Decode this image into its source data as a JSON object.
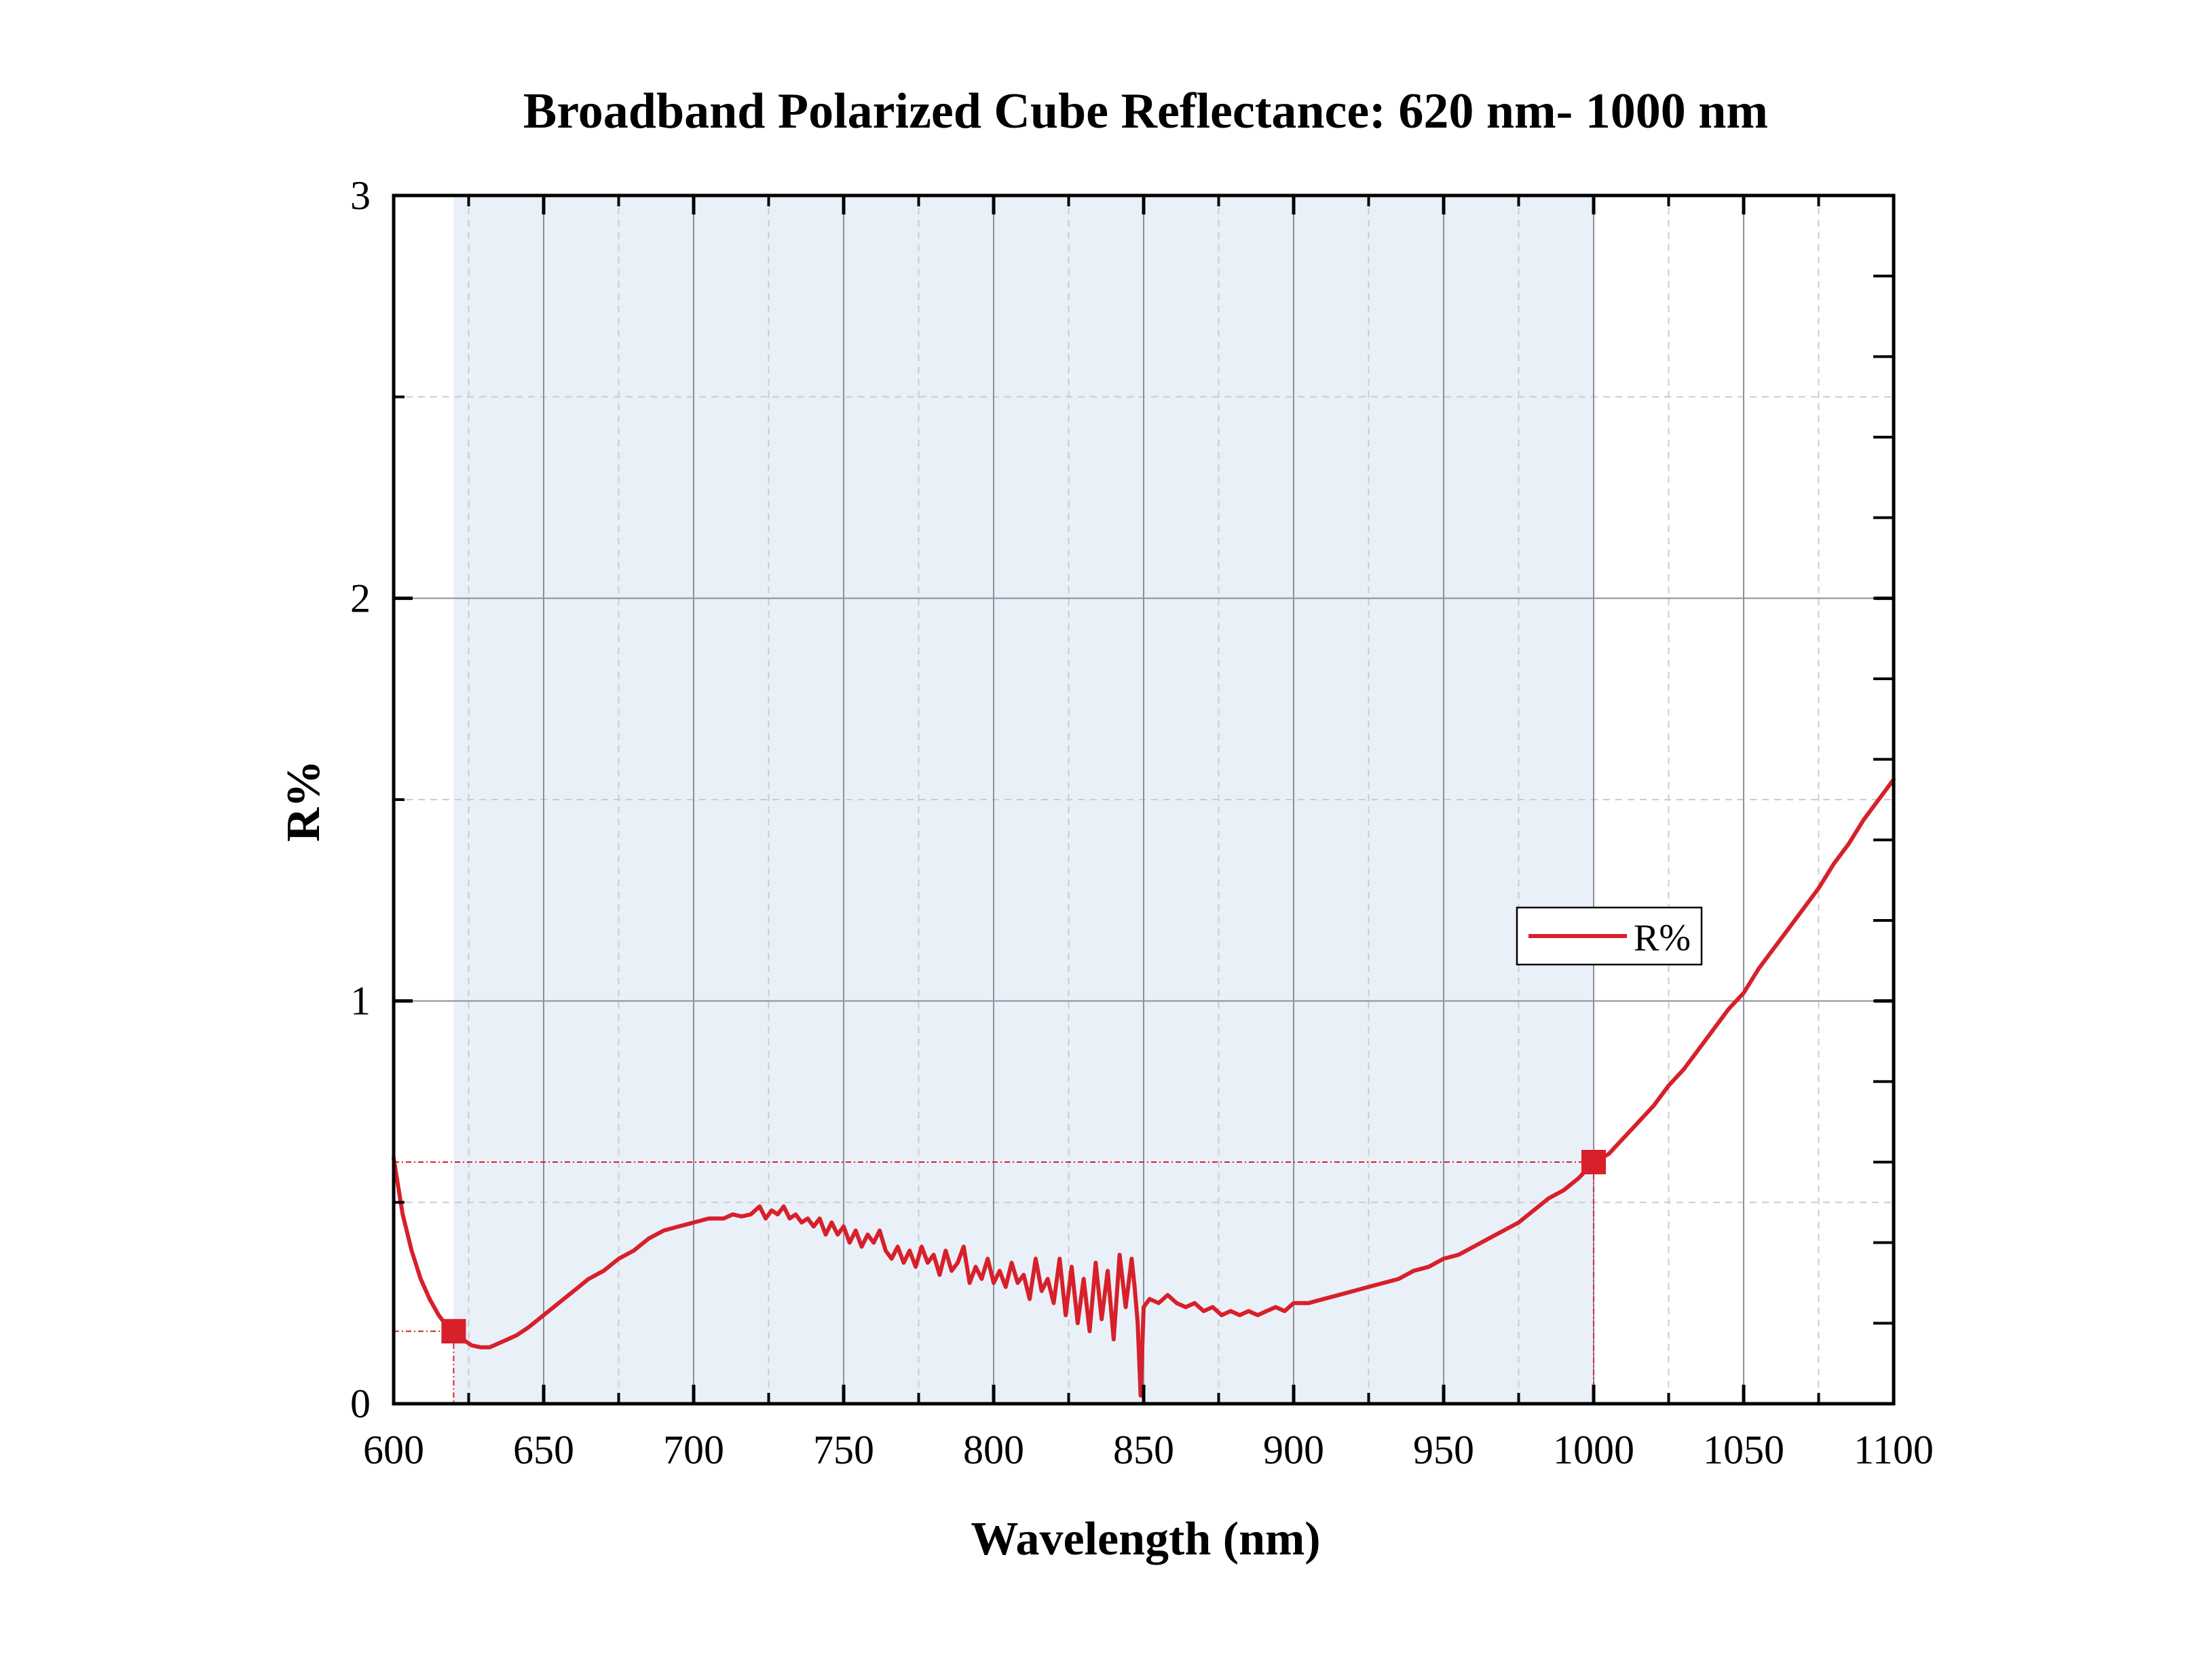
{
  "chart_data": {
    "type": "line",
    "title": "Broadband Polarized Cube Reflectance: 620 nm- 1000 nm",
    "xlabel": "Wavelength (nm)",
    "ylabel": "R%",
    "xlim": [
      600,
      1100
    ],
    "ylim": [
      0,
      3
    ],
    "x_ticks": [
      600,
      650,
      700,
      750,
      800,
      850,
      900,
      950,
      1000,
      1050,
      1100
    ],
    "x_tick_labels": [
      "600",
      "650",
      "700",
      "750",
      "800",
      "850",
      "900",
      "950",
      "1000",
      "1050",
      "1100"
    ],
    "y_ticks": [
      0,
      1,
      2,
      3
    ],
    "y_tick_labels": [
      "0",
      "1",
      "2",
      "3"
    ],
    "x_minor_step": 25,
    "y_minor_step": 0.5,
    "grid": true,
    "shaded_band": [
      620,
      1000
    ],
    "legend": {
      "placement": "right",
      "entries": [
        "R%"
      ]
    },
    "colors": {
      "series": "#d7202a",
      "band": "#eaf0f8",
      "grid_major": "#8a8f9a",
      "grid_minor": "#c9ccd2"
    },
    "markers": [
      {
        "x": 620,
        "y": 0.18
      },
      {
        "x": 1000,
        "y": 0.6
      }
    ],
    "series": [
      {
        "name": "R%",
        "points": [
          [
            600,
            0.61
          ],
          [
            603,
            0.47
          ],
          [
            606,
            0.38
          ],
          [
            609,
            0.31
          ],
          [
            612,
            0.26
          ],
          [
            615,
            0.22
          ],
          [
            618,
            0.19
          ],
          [
            620,
            0.18
          ],
          [
            623,
            0.16
          ],
          [
            626,
            0.145
          ],
          [
            629,
            0.14
          ],
          [
            632,
            0.14
          ],
          [
            635,
            0.15
          ],
          [
            638,
            0.16
          ],
          [
            641,
            0.17
          ],
          [
            645,
            0.19
          ],
          [
            650,
            0.22
          ],
          [
            655,
            0.25
          ],
          [
            660,
            0.28
          ],
          [
            665,
            0.31
          ],
          [
            670,
            0.33
          ],
          [
            675,
            0.36
          ],
          [
            680,
            0.38
          ],
          [
            685,
            0.41
          ],
          [
            690,
            0.43
          ],
          [
            695,
            0.44
          ],
          [
            700,
            0.45
          ],
          [
            705,
            0.46
          ],
          [
            710,
            0.46
          ],
          [
            713,
            0.47
          ],
          [
            716,
            0.465
          ],
          [
            719,
            0.47
          ],
          [
            722,
            0.49
          ],
          [
            724,
            0.46
          ],
          [
            726,
            0.48
          ],
          [
            728,
            0.47
          ],
          [
            730,
            0.49
          ],
          [
            732,
            0.46
          ],
          [
            734,
            0.47
          ],
          [
            736,
            0.45
          ],
          [
            738,
            0.46
          ],
          [
            740,
            0.44
          ],
          [
            742,
            0.46
          ],
          [
            744,
            0.42
          ],
          [
            746,
            0.45
          ],
          [
            748,
            0.42
          ],
          [
            750,
            0.44
          ],
          [
            752,
            0.4
          ],
          [
            754,
            0.43
          ],
          [
            756,
            0.39
          ],
          [
            758,
            0.42
          ],
          [
            760,
            0.4
          ],
          [
            762,
            0.43
          ],
          [
            764,
            0.38
          ],
          [
            766,
            0.36
          ],
          [
            768,
            0.39
          ],
          [
            770,
            0.35
          ],
          [
            772,
            0.38
          ],
          [
            774,
            0.34
          ],
          [
            776,
            0.39
          ],
          [
            778,
            0.35
          ],
          [
            780,
            0.37
          ],
          [
            782,
            0.32
          ],
          [
            784,
            0.38
          ],
          [
            786,
            0.33
          ],
          [
            788,
            0.35
          ],
          [
            790,
            0.39
          ],
          [
            792,
            0.3
          ],
          [
            794,
            0.34
          ],
          [
            796,
            0.31
          ],
          [
            798,
            0.36
          ],
          [
            800,
            0.3
          ],
          [
            802,
            0.33
          ],
          [
            804,
            0.29
          ],
          [
            806,
            0.35
          ],
          [
            808,
            0.3
          ],
          [
            810,
            0.32
          ],
          [
            812,
            0.26
          ],
          [
            814,
            0.36
          ],
          [
            816,
            0.28
          ],
          [
            818,
            0.31
          ],
          [
            820,
            0.25
          ],
          [
            822,
            0.36
          ],
          [
            824,
            0.22
          ],
          [
            826,
            0.34
          ],
          [
            828,
            0.2
          ],
          [
            830,
            0.31
          ],
          [
            832,
            0.18
          ],
          [
            834,
            0.35
          ],
          [
            836,
            0.21
          ],
          [
            838,
            0.33
          ],
          [
            840,
            0.16
          ],
          [
            842,
            0.37
          ],
          [
            844,
            0.24
          ],
          [
            846,
            0.36
          ],
          [
            847,
            0.29
          ],
          [
            848,
            0.2
          ],
          [
            849,
            0.02
          ],
          [
            850,
            0.24
          ],
          [
            852,
            0.26
          ],
          [
            855,
            0.25
          ],
          [
            858,
            0.27
          ],
          [
            861,
            0.25
          ],
          [
            864,
            0.24
          ],
          [
            867,
            0.25
          ],
          [
            870,
            0.23
          ],
          [
            873,
            0.24
          ],
          [
            876,
            0.22
          ],
          [
            879,
            0.23
          ],
          [
            882,
            0.22
          ],
          [
            885,
            0.23
          ],
          [
            888,
            0.22
          ],
          [
            891,
            0.23
          ],
          [
            894,
            0.24
          ],
          [
            897,
            0.23
          ],
          [
            900,
            0.25
          ],
          [
            905,
            0.25
          ],
          [
            910,
            0.26
          ],
          [
            915,
            0.27
          ],
          [
            920,
            0.28
          ],
          [
            925,
            0.29
          ],
          [
            930,
            0.3
          ],
          [
            935,
            0.31
          ],
          [
            940,
            0.33
          ],
          [
            945,
            0.34
          ],
          [
            950,
            0.36
          ],
          [
            955,
            0.37
          ],
          [
            960,
            0.39
          ],
          [
            965,
            0.41
          ],
          [
            970,
            0.43
          ],
          [
            975,
            0.45
          ],
          [
            980,
            0.48
          ],
          [
            985,
            0.51
          ],
          [
            990,
            0.53
          ],
          [
            995,
            0.56
          ],
          [
            1000,
            0.6
          ],
          [
            1005,
            0.62
          ],
          [
            1010,
            0.66
          ],
          [
            1015,
            0.7
          ],
          [
            1020,
            0.74
          ],
          [
            1025,
            0.79
          ],
          [
            1030,
            0.83
          ],
          [
            1035,
            0.88
          ],
          [
            1040,
            0.93
          ],
          [
            1045,
            0.98
          ],
          [
            1050,
            1.02
          ],
          [
            1055,
            1.08
          ],
          [
            1060,
            1.13
          ],
          [
            1065,
            1.18
          ],
          [
            1070,
            1.23
          ],
          [
            1075,
            1.28
          ],
          [
            1080,
            1.34
          ],
          [
            1085,
            1.39
          ],
          [
            1090,
            1.45
          ],
          [
            1095,
            1.5
          ],
          [
            1100,
            1.55
          ]
        ]
      }
    ]
  }
}
